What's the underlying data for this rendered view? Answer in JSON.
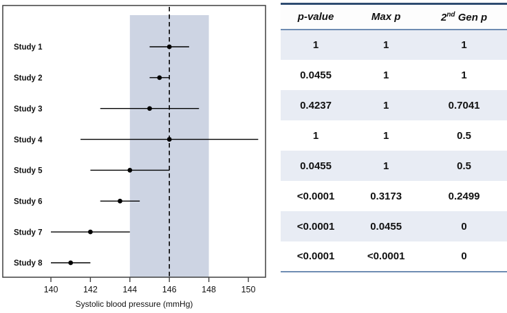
{
  "colors": {
    "band": "#cdd4e3",
    "row_shade": "#e8ecf4",
    "line_dark": "#2e4b70",
    "line_mid": "#6e8cb2",
    "plot_border": "#3f3f3f",
    "data_ink": "#000000"
  },
  "chart_data": {
    "type": "scatter",
    "subtype": "forest-plot",
    "title": "",
    "xlabel": "Systolic blood pressure (mmHg)",
    "ylabel": "",
    "xlim": [
      137.6,
      150.9
    ],
    "xticks": [
      140,
      142,
      144,
      146,
      148,
      150
    ],
    "reference_line_x": 146,
    "shaded_band_x": [
      144,
      148
    ],
    "grid": false,
    "studies": [
      {
        "label": "Study 1",
        "mean": 146.0,
        "ci_low": 145.0,
        "ci_high": 147.0
      },
      {
        "label": "Study 2",
        "mean": 145.5,
        "ci_low": 145.0,
        "ci_high": 146.0
      },
      {
        "label": "Study 3",
        "mean": 145.0,
        "ci_low": 142.5,
        "ci_high": 147.5
      },
      {
        "label": "Study 4",
        "mean": 146.0,
        "ci_low": 141.5,
        "ci_high": 150.5
      },
      {
        "label": "Study 5",
        "mean": 144.0,
        "ci_low": 142.0,
        "ci_high": 146.0
      },
      {
        "label": "Study 6",
        "mean": 143.5,
        "ci_low": 142.5,
        "ci_high": 144.5
      },
      {
        "label": "Study 7",
        "mean": 142.0,
        "ci_low": 140.0,
        "ci_high": 144.0
      },
      {
        "label": "Study 8",
        "mean": 141.0,
        "ci_low": 140.0,
        "ci_high": 142.0
      }
    ]
  },
  "table": {
    "header_pvalue": "p-value",
    "header_maxp": "Max p",
    "header_gen_base": "2",
    "header_gen_sup": "nd",
    "header_gen_rest": " Gen p",
    "rows": [
      [
        "1",
        "1",
        "1"
      ],
      [
        "0.0455",
        "1",
        "1"
      ],
      [
        "0.4237",
        "1",
        "0.7041"
      ],
      [
        "1",
        "1",
        "0.5"
      ],
      [
        "0.0455",
        "1",
        "0.5"
      ],
      [
        "<0.0001",
        "0.3173",
        "0.2499"
      ],
      [
        "<0.0001",
        "0.0455",
        "0"
      ],
      [
        "<0.0001",
        "<0.0001",
        "0"
      ]
    ]
  }
}
